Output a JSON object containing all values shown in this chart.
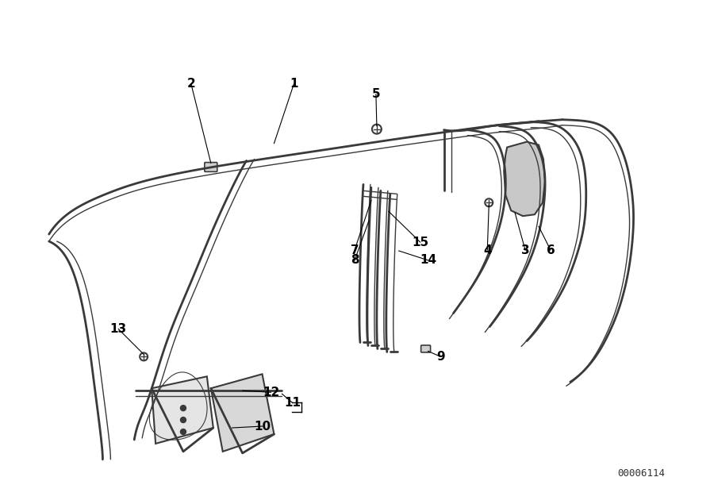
{
  "bg_color": "#ffffff",
  "lc": "#3a3a3a",
  "lc_light": "#888888",
  "diagram_id": "00006114",
  "figsize": [
    9.0,
    6.35
  ],
  "dpi": 100
}
